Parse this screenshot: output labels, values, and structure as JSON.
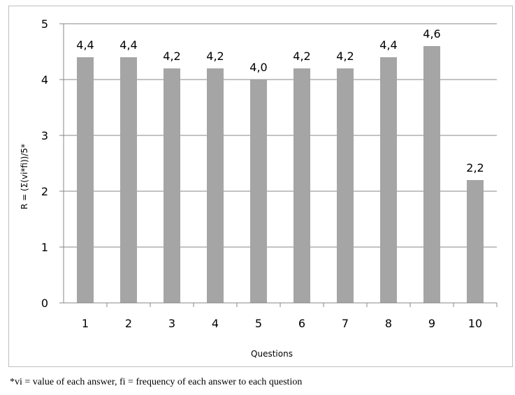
{
  "chart_data": {
    "type": "bar",
    "categories": [
      "1",
      "2",
      "3",
      "4",
      "5",
      "6",
      "7",
      "8",
      "9",
      "10"
    ],
    "values": [
      4.4,
      4.4,
      4.2,
      4.2,
      4.0,
      4.2,
      4.2,
      4.4,
      4.6,
      2.2
    ],
    "data_labels": [
      "4,4",
      "4,4",
      "4,2",
      "4,2",
      "4,0",
      "4,2",
      "4,2",
      "4,4",
      "4,6",
      "2,2"
    ],
    "title": "",
    "xlabel": "Questions",
    "ylabel": "R = (Σ(vi*fi))/5*",
    "ylim": [
      0,
      5
    ],
    "yticks": [
      "0",
      "1",
      "2",
      "3",
      "4",
      "5"
    ],
    "grid": true,
    "legend": "none",
    "colors": {
      "bar": "#a5a5a5",
      "grid": "#878787",
      "axis": "#878787"
    }
  },
  "footnote": "*vi = value of each answer, fi = frequency of each answer to each question"
}
